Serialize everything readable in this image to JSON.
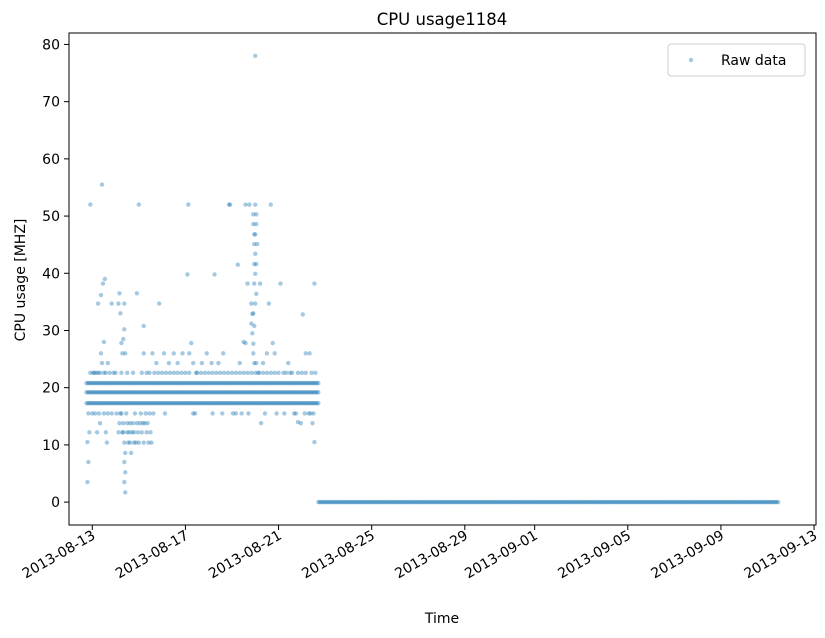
{
  "chart_data": {
    "type": "scatter",
    "title": "CPU usage1184",
    "xlabel": "Time",
    "ylabel": "CPU usage [MHZ]",
    "xlim": [
      "2013-08-12T00:00",
      "2013-09-13T02:00"
    ],
    "ylim": [
      -4,
      82
    ],
    "x_ticks": [
      "2013-08-13",
      "2013-08-17",
      "2013-08-21",
      "2013-08-25",
      "2013-08-29",
      "2013-09-01",
      "2013-09-05",
      "2013-09-09",
      "2013-09-13"
    ],
    "y_ticks": [
      0,
      10,
      20,
      30,
      40,
      50,
      60,
      70,
      80
    ],
    "grid": false,
    "legend": {
      "position": "top-right",
      "entries": [
        "Raw data"
      ]
    },
    "series": [
      {
        "name": "Raw data",
        "color": "#1f77b4",
        "marker": "dot",
        "alpha": 0.4,
        "bands": [
          {
            "from": "2013-08-12T18:00",
            "to": "2013-08-22T17:00",
            "y": 17.3
          },
          {
            "from": "2013-08-12T18:00",
            "to": "2013-08-22T17:00",
            "y": 19.2
          },
          {
            "from": "2013-08-12T18:00",
            "to": "2013-08-22T17:00",
            "y": 20.8
          },
          {
            "from": "2013-08-22T17:00",
            "to": "2013-09-11T11:00",
            "y": 0
          }
        ],
        "points": [
          [
            "2013-08-12T19:00",
            3.5
          ],
          [
            "2013-08-12T20:00",
            7.0
          ],
          [
            "2013-08-12T19:00",
            10.5
          ],
          [
            "2013-08-12T21:00",
            12.2
          ],
          [
            "2013-08-12T20:00",
            15.5
          ],
          [
            "2013-08-12T22:00",
            22.6
          ],
          [
            "2013-08-12T22:00",
            52.0
          ],
          [
            "2013-08-13T01:00",
            22.6
          ],
          [
            "2013-08-13T05:00",
            12.2
          ],
          [
            "2013-08-13T08:00",
            13.8
          ],
          [
            "2013-08-13T06:00",
            34.7
          ],
          [
            "2013-08-13T10:00",
            55.5
          ],
          [
            "2013-08-13T09:00",
            36.2
          ],
          [
            "2013-08-13T11:00",
            38.2
          ],
          [
            "2013-08-13T13:00",
            39.0
          ],
          [
            "2013-08-13T09:00",
            26.0
          ],
          [
            "2013-08-13T12:00",
            28.0
          ],
          [
            "2013-08-13T10:00",
            24.3
          ],
          [
            "2013-08-13T14:00",
            12.2
          ],
          [
            "2013-08-13T15:00",
            10.4
          ],
          [
            "2013-08-13T16:00",
            24.3
          ],
          [
            "2013-08-13T20:00",
            34.7
          ],
          [
            "2013-08-13T22:00",
            22.6
          ],
          [
            "2013-08-14T03:00",
            34.7
          ],
          [
            "2013-08-14T04:00",
            36.5
          ],
          [
            "2013-08-14T05:00",
            33.0
          ],
          [
            "2013-08-14T06:00",
            27.8
          ],
          [
            "2013-08-14T08:00",
            28.5
          ],
          [
            "2013-08-14T07:00",
            26.0
          ],
          [
            "2013-08-14T09:00",
            34.7
          ],
          [
            "2013-08-14T09:00",
            30.2
          ],
          [
            "2013-08-14T10:00",
            26.0
          ],
          [
            "2013-08-14T06:00",
            15.5
          ],
          [
            "2013-08-14T08:00",
            13.8
          ],
          [
            "2013-08-14T08:00",
            12.2
          ],
          [
            "2013-08-14T09:00",
            10.4
          ],
          [
            "2013-08-14T10:00",
            8.6
          ],
          [
            "2013-08-14T09:00",
            7.0
          ],
          [
            "2013-08-14T10:00",
            5.2
          ],
          [
            "2013-08-14T09:00",
            3.5
          ],
          [
            "2013-08-14T10:00",
            1.7
          ],
          [
            "2013-08-14T11:00",
            15.5
          ],
          [
            "2013-08-14T12:00",
            13.8
          ],
          [
            "2013-08-14T14:00",
            12.2
          ],
          [
            "2013-08-14T15:00",
            10.4
          ],
          [
            "2013-08-14T16:00",
            8.6
          ],
          [
            "2013-08-14T18:00",
            13.8
          ],
          [
            "2013-08-14T19:00",
            12.2
          ],
          [
            "2013-08-14T20:00",
            15.5
          ],
          [
            "2013-08-14T21:00",
            10.4
          ],
          [
            "2013-08-14T22:00",
            13.8
          ],
          [
            "2013-08-14T23:00",
            12.2
          ],
          [
            "2013-08-15T01:00",
            13.8
          ],
          [
            "2013-08-15T02:00",
            15.5
          ],
          [
            "2013-08-15T03:00",
            12.2
          ],
          [
            "2013-08-15T05:00",
            10.4
          ],
          [
            "2013-08-15T06:00",
            13.8
          ],
          [
            "2013-08-15T07:00",
            15.5
          ],
          [
            "2013-08-15T08:00",
            12.2
          ],
          [
            "2013-08-15T10:00",
            10.4
          ],
          [
            "2013-08-15T11:00",
            15.5
          ],
          [
            "2013-08-15T13:00",
            10.4
          ],
          [
            "2013-08-15T00:00",
            52.0
          ],
          [
            "2013-08-14T22:00",
            36.5
          ],
          [
            "2013-08-15T05:00",
            30.8
          ],
          [
            "2013-08-15T03:00",
            22.6
          ],
          [
            "2013-08-15T05:00",
            26.0
          ],
          [
            "2013-08-15T11:00",
            22.6
          ],
          [
            "2013-08-15T14:00",
            26.0
          ],
          [
            "2013-08-15T18:00",
            24.3
          ],
          [
            "2013-08-15T21:00",
            34.7
          ],
          [
            "2013-08-16T02:00",
            26.0
          ],
          [
            "2013-08-16T07:00",
            24.3
          ],
          [
            "2013-08-16T12:00",
            26.0
          ],
          [
            "2013-08-16T16:00",
            24.3
          ],
          [
            "2013-08-16T21:00",
            26.0
          ],
          [
            "2013-08-17T03:00",
            52.0
          ],
          [
            "2013-08-17T02:00",
            39.8
          ],
          [
            "2013-08-17T06:00",
            27.8
          ],
          [
            "2013-08-17T04:00",
            26.0
          ],
          [
            "2013-08-17T08:00",
            24.3
          ],
          [
            "2013-08-17T11:00",
            22.6
          ],
          [
            "2013-08-17T08:00",
            15.5
          ],
          [
            "2013-08-17T17:00",
            24.3
          ],
          [
            "2013-08-17T22:00",
            26.0
          ],
          [
            "2013-08-18T03:00",
            24.3
          ],
          [
            "2013-08-18T06:00",
            39.8
          ],
          [
            "2013-08-18T10:00",
            24.3
          ],
          [
            "2013-08-18T15:00",
            26.0
          ],
          [
            "2013-08-18T21:00",
            52.0
          ],
          [
            "2013-08-18T22:00",
            52.0
          ],
          [
            "2013-08-19T01:00",
            15.5
          ],
          [
            "2013-08-19T06:00",
            41.5
          ],
          [
            "2013-08-19T08:00",
            24.3
          ],
          [
            "2013-08-19T10:00",
            15.5
          ],
          [
            "2013-08-19T12:00",
            28.0
          ],
          [
            "2013-08-19T14:00",
            27.8
          ],
          [
            "2013-08-19T14:00",
            52.0
          ],
          [
            "2013-08-19T18:00",
            52.0
          ],
          [
            "2013-08-19T16:00",
            38.2
          ],
          [
            "2013-08-19T20:00",
            34.7
          ],
          [
            "2013-08-19T22:00",
            33.0
          ],
          [
            "2013-08-19T23:00",
            30.8
          ],
          [
            "2013-08-20T00:00",
            78.0
          ],
          [
            "2013-08-20T05:00",
            38.2
          ],
          [
            "2013-08-20T06:00",
            13.8
          ],
          [
            "2013-08-20T03:00",
            22.6
          ],
          [
            "2013-08-20T08:00",
            24.3
          ],
          [
            "2013-08-20T12:00",
            26.0
          ],
          [
            "2013-08-20T16:00",
            52.0
          ],
          [
            "2013-08-20T14:00",
            34.7
          ],
          [
            "2013-08-20T18:00",
            27.8
          ],
          [
            "2013-08-20T20:00",
            26.0
          ],
          [
            "2013-08-21T02:00",
            38.2
          ],
          [
            "2013-08-21T05:00",
            22.6
          ],
          [
            "2013-08-21T10:00",
            24.3
          ],
          [
            "2013-08-21T14:00",
            22.6
          ],
          [
            "2013-08-21T16:00",
            15.5
          ],
          [
            "2013-08-21T20:00",
            14.0
          ],
          [
            "2013-08-21T23:00",
            13.8
          ],
          [
            "2013-08-22T01:00",
            32.8
          ],
          [
            "2013-08-22T04:00",
            26.0
          ],
          [
            "2013-08-22T08:00",
            26.0
          ],
          [
            "2013-08-22T13:00",
            38.2
          ],
          [
            "2013-08-22T13:00",
            10.5
          ],
          [
            "2013-08-22T11:00",
            13.8
          ],
          [
            "2013-08-22T07:00",
            15.5
          ],
          [
            "2013-08-22T10:00",
            22.6
          ],
          [
            "2013-08-22T12:00",
            15.5
          ],
          [
            "2013-08-19T22:00",
            50.3
          ],
          [
            "2013-08-19T22:00",
            48.6
          ],
          [
            "2013-08-19T23:00",
            46.8
          ],
          [
            "2013-08-19T23:00",
            45.1
          ],
          [
            "2013-08-20T00:00",
            43.4
          ],
          [
            "2013-08-19T23:00",
            41.6
          ],
          [
            "2013-08-20T00:00",
            39.9
          ],
          [
            "2013-08-19T23:00",
            38.2
          ],
          [
            "2013-08-20T01:00",
            36.4
          ],
          [
            "2013-08-20T00:00",
            34.7
          ],
          [
            "2013-08-20T00:00",
            52.0
          ],
          [
            "2013-08-20T01:00",
            50.3
          ],
          [
            "2013-08-20T01:00",
            48.6
          ],
          [
            "2013-08-20T00:00",
            46.8
          ],
          [
            "2013-08-20T02:00",
            45.1
          ],
          [
            "2013-08-20T01:00",
            41.6
          ],
          [
            "2013-08-19T21:00",
            32.9
          ],
          [
            "2013-08-19T20:00",
            31.2
          ],
          [
            "2013-08-19T21:00",
            29.5
          ],
          [
            "2013-08-19T22:00",
            27.7
          ],
          [
            "2013-08-19T22:00",
            26.0
          ],
          [
            "2013-08-19T23:00",
            24.3
          ],
          [
            "2013-08-20T00:00",
            22.6
          ],
          [
            "2013-08-20T01:00",
            24.3
          ],
          [
            "2013-08-19T20:00",
            22.6
          ],
          [
            "2013-08-14T01:00",
            15.5
          ],
          [
            "2013-08-14T03:00",
            12.2
          ],
          [
            "2013-08-14T04:00",
            13.8
          ],
          [
            "2013-08-14T05:00",
            15.5
          ],
          [
            "2013-08-14T07:00",
            12.2
          ],
          [
            "2013-08-14T12:00",
            12.2
          ],
          [
            "2013-08-14T13:00",
            10.4
          ],
          [
            "2013-08-14T15:00",
            13.8
          ],
          [
            "2013-08-14T17:00",
            12.2
          ],
          [
            "2013-08-14T19:00",
            10.4
          ],
          [
            "2013-08-15T00:00",
            10.4
          ],
          [
            "2013-08-15T04:00",
            13.8
          ],
          [
            "2013-08-15T09:00",
            13.8
          ],
          [
            "2013-08-15T12:00",
            12.2
          ],
          [
            "2013-08-15T15:00",
            15.5
          ],
          [
            "2013-08-13T02:00",
            22.6
          ],
          [
            "2013-08-13T04:00",
            22.6
          ],
          [
            "2013-08-13T06:00",
            22.6
          ],
          [
            "2013-08-13T08:00",
            22.6
          ],
          [
            "2013-08-13T12:00",
            22.6
          ],
          [
            "2013-08-13T14:00",
            22.6
          ],
          [
            "2013-08-13T18:00",
            22.6
          ],
          [
            "2013-08-14T00:00",
            22.6
          ],
          [
            "2013-08-14T06:00",
            22.6
          ],
          [
            "2013-08-14T12:00",
            22.6
          ],
          [
            "2013-08-14T18:00",
            22.6
          ],
          [
            "2013-08-15T08:00",
            22.6
          ],
          [
            "2013-08-15T16:00",
            22.6
          ],
          [
            "2013-08-15T20:00",
            22.6
          ],
          [
            "2013-08-16T00:00",
            22.6
          ],
          [
            "2013-08-16T04:00",
            22.6
          ],
          [
            "2013-08-16T08:00",
            22.6
          ],
          [
            "2013-08-16T12:00",
            22.6
          ],
          [
            "2013-08-16T16:00",
            22.6
          ],
          [
            "2013-08-16T20:00",
            22.6
          ],
          [
            "2013-08-17T00:00",
            22.6
          ],
          [
            "2013-08-17T04:00",
            22.6
          ],
          [
            "2013-08-17T12:00",
            22.6
          ],
          [
            "2013-08-17T16:00",
            22.6
          ],
          [
            "2013-08-17T20:00",
            22.6
          ],
          [
            "2013-08-18T00:00",
            22.6
          ],
          [
            "2013-08-18T04:00",
            22.6
          ],
          [
            "2013-08-18T08:00",
            22.6
          ],
          [
            "2013-08-18T12:00",
            22.6
          ],
          [
            "2013-08-18T16:00",
            22.6
          ],
          [
            "2013-08-18T20:00",
            22.6
          ],
          [
            "2013-08-19T00:00",
            22.6
          ],
          [
            "2013-08-19T04:00",
            22.6
          ],
          [
            "2013-08-19T08:00",
            22.6
          ],
          [
            "2013-08-19T12:00",
            22.6
          ],
          [
            "2013-08-19T16:00",
            22.6
          ],
          [
            "2013-08-20T04:00",
            22.6
          ],
          [
            "2013-08-20T08:00",
            22.6
          ],
          [
            "2013-08-20T12:00",
            22.6
          ],
          [
            "2013-08-20T16:00",
            22.6
          ],
          [
            "2013-08-20T20:00",
            22.6
          ],
          [
            "2013-08-21T00:00",
            22.6
          ],
          [
            "2013-08-21T08:00",
            22.6
          ],
          [
            "2013-08-21T12:00",
            22.6
          ],
          [
            "2013-08-21T20:00",
            22.6
          ],
          [
            "2013-08-22T00:00",
            22.6
          ],
          [
            "2013-08-22T04:00",
            22.6
          ],
          [
            "2013-08-22T14:00",
            22.6
          ],
          [
            "2013-08-13T00:00",
            15.5
          ],
          [
            "2013-08-13T03:00",
            15.5
          ],
          [
            "2013-08-13T07:00",
            15.5
          ],
          [
            "2013-08-13T12:00",
            15.5
          ],
          [
            "2013-08-13T16:00",
            15.5
          ],
          [
            "2013-08-13T20:00",
            15.5
          ],
          [
            "2013-08-16T03:00",
            15.5
          ],
          [
            "2013-08-17T10:00",
            15.5
          ],
          [
            "2013-08-18T04:00",
            15.5
          ],
          [
            "2013-08-18T14:00",
            15.5
          ],
          [
            "2013-08-19T04:00",
            15.5
          ],
          [
            "2013-08-19T17:00",
            15.5
          ],
          [
            "2013-08-20T10:00",
            15.5
          ],
          [
            "2013-08-20T22:00",
            15.5
          ],
          [
            "2013-08-21T06:00",
            15.5
          ],
          [
            "2013-08-21T18:00",
            15.5
          ],
          [
            "2013-08-22T03:00",
            15.5
          ],
          [
            "2013-08-22T09:00",
            15.5
          ]
        ]
      }
    ]
  }
}
